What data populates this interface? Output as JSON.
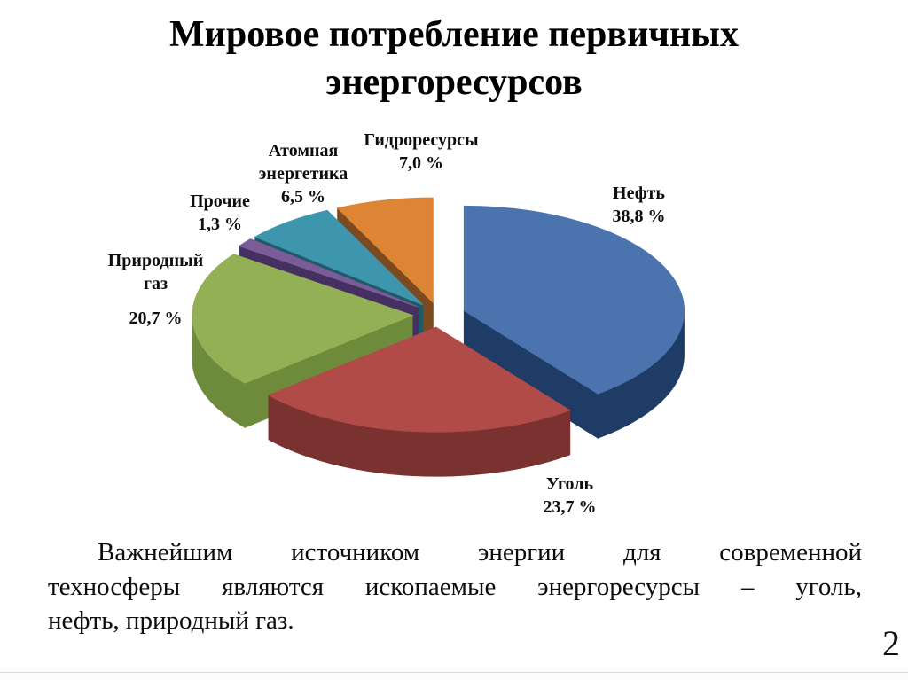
{
  "slide": {
    "title_line1": "Мировое потребление первичных",
    "title_line2": "энергоресурсов",
    "page_number": "2",
    "body_lines": [
      "Важнейшим источником энергии для современной",
      "техносферы являются ископаемые энергоресурсы – уголь,",
      "нефть, природный газ."
    ]
  },
  "chart_data": {
    "type": "pie",
    "style": "3d-exploded",
    "title": "",
    "unit": "%",
    "start_angle_deg": 0,
    "direction": "clockwise",
    "legend_position": "labels-outside",
    "slices": [
      {
        "name": "Нефть",
        "value": 38.8,
        "value_label": "38,8 %",
        "color_top": "#4B74AE",
        "color_side": "#1E3C66"
      },
      {
        "name": "Уголь",
        "value": 23.7,
        "value_label": "23,7 %",
        "color_top": "#B04B48",
        "color_side": "#7A3230"
      },
      {
        "name": "Природный газ",
        "value": 20.7,
        "value_label": "20,7 %",
        "color_top": "#94B054",
        "color_side": "#6E8B3C"
      },
      {
        "name": "Прочие",
        "value": 1.3,
        "value_label": "1,3 %",
        "color_top": "#7B5C99",
        "color_side": "#463061"
      },
      {
        "name": "Атомная энергетика",
        "value": 6.5,
        "value_label": "6,5 %",
        "color_top": "#3E96AE",
        "color_side": "#215A67"
      },
      {
        "name": "Гидроресурсы",
        "value": 7.0,
        "value_label": "7,0 %",
        "color_top": "#DD8435",
        "color_side": "#7B4A21"
      }
    ]
  }
}
